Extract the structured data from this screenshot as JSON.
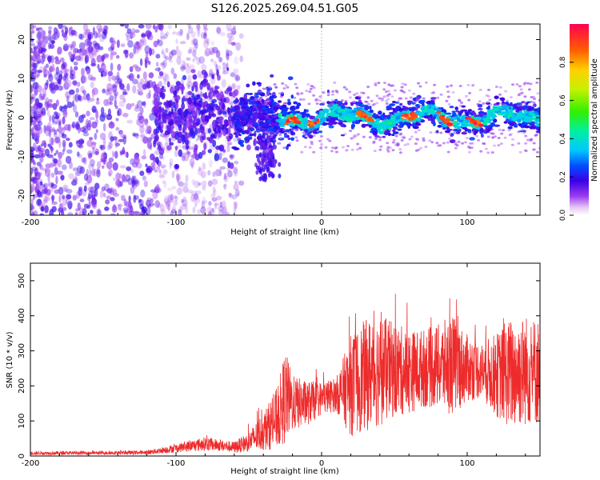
{
  "title": "S126.2025.269.04.51.G05",
  "chart_data": [
    {
      "type": "heatmap",
      "title": "",
      "xlabel": "Height of straight line (km)",
      "ylabel": "Frequency (Hz)",
      "xlim": [
        -200,
        150
      ],
      "ylim": [
        -25,
        24
      ],
      "xticks": [
        -200,
        -100,
        0,
        100
      ],
      "yticks": [
        -20,
        -10,
        0,
        10,
        20
      ],
      "colorbar": {
        "label": "Normalized spectral amplitude",
        "range": [
          0.0,
          1.0
        ],
        "ticks": [
          0.0,
          0.2,
          0.4,
          0.6,
          0.8
        ]
      },
      "description_ridge": {
        "x_start": -60,
        "x_end": 150,
        "center_freq": 0,
        "peak_amplitude_x": [
          -20,
          -5,
          30,
          60,
          85,
          105
        ]
      }
    },
    {
      "type": "line",
      "title": "",
      "xlabel": "Height of straight line (km)",
      "ylabel": "SNR (10 * v/v)",
      "xlim": [
        -200,
        150
      ],
      "ylim": [
        0,
        550
      ],
      "xticks": [
        -200,
        -100,
        0,
        100
      ],
      "yticks": [
        0,
        100,
        200,
        300,
        400,
        500
      ],
      "series": [
        {
          "name": "SNR",
          "color": "#ee2b2b",
          "envelope_x": [
            -200,
            -150,
            -120,
            -100,
            -80,
            -70,
            -60,
            -50,
            -40,
            -30,
            -25,
            -20,
            -10,
            0,
            10,
            20,
            30,
            40,
            50,
            60,
            70,
            80,
            90,
            100,
            110,
            120,
            130,
            140,
            150
          ],
          "envelope_mean": [
            8,
            9,
            10,
            22,
            35,
            30,
            25,
            40,
            70,
            110,
            170,
            150,
            150,
            165,
            175,
            200,
            230,
            245,
            245,
            240,
            250,
            255,
            260,
            250,
            245,
            230,
            235,
            245,
            240
          ],
          "envelope_spread": [
            6,
            6,
            7,
            15,
            25,
            20,
            20,
            35,
            70,
            110,
            170,
            100,
            80,
            60,
            60,
            180,
            200,
            200,
            170,
            150,
            140,
            150,
            180,
            120,
            100,
            150,
            200,
            200,
            190
          ]
        }
      ]
    }
  ]
}
